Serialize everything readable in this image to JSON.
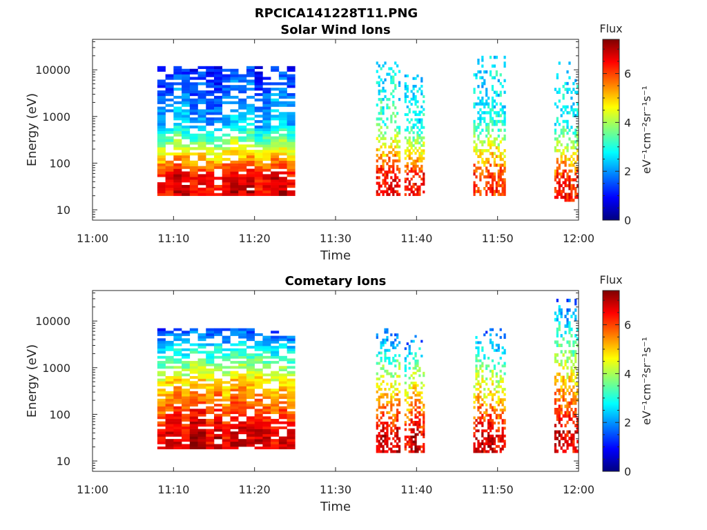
{
  "figure_title": "RPCICA141228T11.PNG",
  "colormap": {
    "name": "jet",
    "stops": [
      "#00007f",
      "#0000ff",
      "#007fff",
      "#00ffff",
      "#7fff7f",
      "#ffff00",
      "#ff7f00",
      "#ff0000",
      "#7f0000"
    ]
  },
  "chart_data": [
    {
      "type": "heatmap",
      "title": "Solar Wind Ions",
      "xlabel": "Time",
      "ylabel": "Energy (eV)",
      "xlim": [
        "11:00",
        "12:00"
      ],
      "ylim": [
        6,
        45000
      ],
      "yscale": "log",
      "x_ticks": [
        "11:00",
        "11:10",
        "11:20",
        "11:30",
        "11:40",
        "11:50",
        "12:00"
      ],
      "y_ticks": [
        10,
        100,
        1000,
        10000
      ],
      "colorbar": {
        "label": "Flux",
        "unit_label": "eV⁻¹cm⁻²sr⁻¹s⁻¹",
        "range": [
          0,
          7.4
        ],
        "ticks": [
          0,
          2,
          4,
          6
        ]
      },
      "bursts": [
        {
          "t_start": "11:08",
          "t_end": "11:25",
          "flux_low_energy": 6.6,
          "flux_mid_energy": 2.3,
          "flux_high_energy": 1.2,
          "e_min": 20,
          "e_max": 12000
        },
        {
          "t_start": "11:35",
          "t_end": "11:38",
          "flux_low_energy": 6.5,
          "flux_mid_energy": 3.2,
          "flux_high_energy": 2.5,
          "e_min": 20,
          "e_max": 15000
        },
        {
          "t_start": "11:38.5",
          "t_end": "11:41",
          "flux_low_energy": 6.4,
          "flux_mid_energy": 2.8,
          "flux_high_energy": 2.4,
          "e_min": 20,
          "e_max": 9000
        },
        {
          "t_start": "11:47",
          "t_end": "11:51",
          "flux_low_energy": 6.0,
          "flux_mid_energy": 2.8,
          "flux_high_energy": 2.5,
          "e_min": 20,
          "e_max": 20000
        },
        {
          "t_start": "11:57",
          "t_end": "12:00",
          "flux_low_energy": 6.3,
          "flux_mid_energy": 2.8,
          "flux_high_energy": 2.3,
          "e_min": 15,
          "e_max": 15000
        }
      ]
    },
    {
      "type": "heatmap",
      "title": "Cometary Ions",
      "xlabel": "Time",
      "ylabel": "Energy (eV)",
      "xlim": [
        "11:00",
        "12:00"
      ],
      "ylim": [
        6,
        45000
      ],
      "yscale": "log",
      "x_ticks": [
        "11:00",
        "11:10",
        "11:20",
        "11:30",
        "11:40",
        "11:50",
        "12:00"
      ],
      "y_ticks": [
        10,
        100,
        1000,
        10000
      ],
      "colorbar": {
        "label": "Flux",
        "unit_label": "eV⁻¹cm⁻²sr⁻¹s⁻¹",
        "range": [
          0,
          7.4
        ],
        "ticks": [
          0,
          2,
          4,
          6
        ]
      },
      "bursts": [
        {
          "t_start": "11:08",
          "t_end": "11:25",
          "flux_low_energy": 6.7,
          "flux_mid_energy": 4.9,
          "flux_high_energy": 1.4,
          "e_min": 18,
          "e_max": 7000
        },
        {
          "t_start": "11:35",
          "t_end": "11:38",
          "flux_low_energy": 6.8,
          "flux_mid_energy": 4.5,
          "flux_high_energy": 1.5,
          "e_min": 15,
          "e_max": 7000
        },
        {
          "t_start": "11:38.5",
          "t_end": "11:41",
          "flux_low_energy": 6.6,
          "flux_mid_energy": 4.5,
          "flux_high_energy": 1.5,
          "e_min": 15,
          "e_max": 5000
        },
        {
          "t_start": "11:47",
          "t_end": "11:51",
          "flux_low_energy": 6.7,
          "flux_mid_energy": 4.4,
          "flux_high_energy": 1.5,
          "e_min": 15,
          "e_max": 7000
        },
        {
          "t_start": "11:57",
          "t_end": "12:00",
          "flux_low_energy": 6.7,
          "flux_mid_energy": 4.4,
          "flux_high_energy": 1.6,
          "e_min": 15,
          "e_max": 30000
        }
      ]
    }
  ]
}
